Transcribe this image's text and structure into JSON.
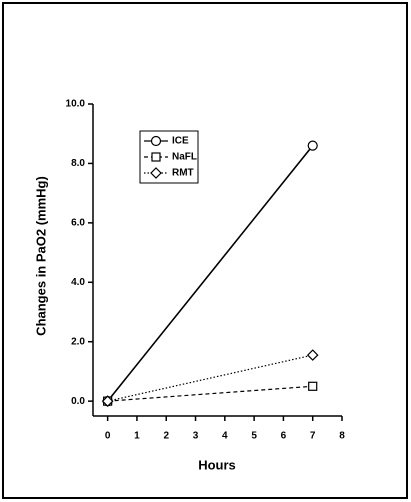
{
  "chart_data": {
    "type": "line",
    "x_label": "Hours",
    "y_label": "Changes in PaO2 (mmHg)",
    "xlim": [
      -0.5,
      8
    ],
    "xticks": [
      0,
      1,
      2,
      3,
      4,
      5,
      6,
      7,
      8
    ],
    "ylim": [
      -0.5,
      10
    ],
    "yticks": [
      {
        "value": 0,
        "label": "0.0"
      },
      {
        "value": 2,
        "label": "2.0"
      },
      {
        "value": 4,
        "label": "4.0"
      },
      {
        "value": 6,
        "label": "6.0"
      },
      {
        "value": 8,
        "label": "8.0"
      },
      {
        "value": 10,
        "label": "10.0"
      }
    ],
    "legend": "upper left",
    "series": [
      {
        "name": "ICE",
        "color": "#000000",
        "marker": "circle",
        "dash": "solid",
        "x": [
          0,
          7
        ],
        "values": [
          0,
          8.6
        ]
      },
      {
        "name": "NaFL",
        "color": "#000000",
        "marker": "square",
        "dash": "dashed",
        "x": [
          0,
          7
        ],
        "values": [
          0,
          0.5
        ]
      },
      {
        "name": "RMT",
        "color": "#000000",
        "marker": "diamond",
        "dash": "dotted",
        "x": [
          0,
          7
        ],
        "values": [
          0,
          1.55
        ]
      }
    ]
  }
}
